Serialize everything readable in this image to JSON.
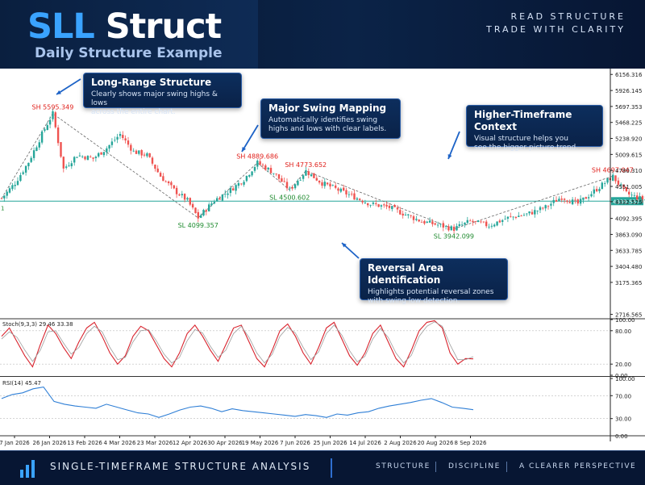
{
  "header": {
    "title_part1": "SLL",
    "title_part2": "Struct",
    "subtitle": "Daily Structure Example",
    "tagline_line1": "READ STRUCTURE",
    "tagline_line2": "TRADE WITH CLARITY"
  },
  "footer": {
    "left_text": "SINGLE-TIMEFRAME STRUCTURE ANALYSIS",
    "items": [
      "STRUCTURE",
      "DISCIPLINE",
      "A CLEARER PERSPECTIVE"
    ],
    "logo_icon": "bar-chart-icon"
  },
  "callouts": [
    {
      "title": "Long-Range Structure",
      "body": "Clearly shows major swing highs & lows\nacross the entire chart."
    },
    {
      "title": "Major Swing Mapping",
      "body": "Automatically identifies swing\nhighs and lows with clear labels."
    },
    {
      "title": "Higher-Timeframe Context",
      "body": "Visual structure helps you\nsee the bigger picture trend."
    },
    {
      "title": "Reversal Area Identification",
      "body": "Highlights potential reversal zones\nwith swing low detection."
    }
  ],
  "colors": {
    "up": "#26a69a",
    "down": "#ef5350",
    "swing_high": "#e0201b",
    "swing_low": "#1e8a2e",
    "current_price": "#26a69a",
    "stoch_k": "#d9232d",
    "stoch_d": "#9e9e9e",
    "rsi": "#2f7fd6",
    "callout_bg": "#0d2e5d"
  },
  "chart_data": [
    {
      "type": "candlestick",
      "x_tick_labels": [
        "7 Jan 2026",
        "26 Jan 2026",
        "13 Feb 2026",
        "4 Mar 2026",
        "23 Mar 2026",
        "12 Apr 2026",
        "30 Apr 2026",
        "19 May 2026",
        "7 Jun 2026",
        "25 Jun 2026",
        "14 Jul 2026",
        "2 Aug 2026",
        "20 Aug 2026",
        "8 Sep 2026"
      ],
      "y_tick_labels": [
        "6156.316",
        "5926.145",
        "5697.353",
        "5468.225",
        "5238.920",
        "5009.615",
        "4780.310",
        "4551.005",
        "4332.525",
        "4092.395",
        "3863.090",
        "3633.785",
        "3404.480",
        "3175.365",
        "2716.565"
      ],
      "ylim": [
        2700,
        6240
      ],
      "current_price": 4339.537,
      "current_price_label": "4339.537",
      "series": [
        {
          "x": "2026-01-07",
          "close": 4380
        },
        {
          "x": "2026-01-12",
          "close": 4600
        },
        {
          "x": "2026-01-17",
          "close": 4900
        },
        {
          "x": "2026-01-22",
          "close": 5300
        },
        {
          "x": "2026-01-26",
          "close": 5595.349
        },
        {
          "x": "2026-01-30",
          "close": 4800
        },
        {
          "x": "2026-02-04",
          "close": 5000
        },
        {
          "x": "2026-02-10",
          "close": 4950
        },
        {
          "x": "2026-02-15",
          "close": 5100
        },
        {
          "x": "2026-02-20",
          "close": 5300
        },
        {
          "x": "2026-02-25",
          "close": 5050
        },
        {
          "x": "2026-03-02",
          "close": 5000
        },
        {
          "x": "2026-03-07",
          "close": 4700
        },
        {
          "x": "2026-03-12",
          "close": 4500
        },
        {
          "x": "2026-03-17",
          "close": 4350
        },
        {
          "x": "2026-03-21",
          "close": 4099.357
        },
        {
          "x": "2026-03-27",
          "close": 4350
        },
        {
          "x": "2026-04-02",
          "close": 4500
        },
        {
          "x": "2026-04-07",
          "close": 4650
        },
        {
          "x": "2026-04-12",
          "close": 4889.686
        },
        {
          "x": "2026-04-18",
          "close": 4750
        },
        {
          "x": "2026-04-24",
          "close": 4500.602
        },
        {
          "x": "2026-04-30",
          "close": 4773.652
        },
        {
          "x": "2026-05-06",
          "close": 4600
        },
        {
          "x": "2026-05-12",
          "close": 4500
        },
        {
          "x": "2026-05-18",
          "close": 4400
        },
        {
          "x": "2026-05-24",
          "close": 4300
        },
        {
          "x": "2026-05-31",
          "close": 4250
        },
        {
          "x": "2026-06-06",
          "close": 4150
        },
        {
          "x": "2026-06-12",
          "close": 4050
        },
        {
          "x": "2026-06-18",
          "close": 4000
        },
        {
          "x": "2026-06-24",
          "close": 3942.099
        },
        {
          "x": "2026-06-30",
          "close": 4050
        },
        {
          "x": "2026-07-07",
          "close": 3990
        },
        {
          "x": "2026-07-14",
          "close": 4100
        },
        {
          "x": "2026-07-21",
          "close": 4150
        },
        {
          "x": "2026-07-28",
          "close": 4250
        },
        {
          "x": "2026-08-03",
          "close": 4400
        },
        {
          "x": "2026-08-09",
          "close": 4300
        },
        {
          "x": "2026-08-14",
          "close": 4450
        },
        {
          "x": "2026-08-19",
          "close": 4600
        },
        {
          "x": "2026-08-22",
          "close": 4697.047
        },
        {
          "x": "2026-08-27",
          "close": 4450
        },
        {
          "x": "2026-09-01",
          "close": 4380
        },
        {
          "x": "2026-09-06",
          "close": 4339.537
        }
      ],
      "swing_labels": [
        {
          "text": "SH 5595.349",
          "kind": "high",
          "x": "2026-01-26",
          "y": 5595.349
        },
        {
          "text": "SL 4099.357",
          "kind": "low",
          "x": "2026-03-21",
          "y": 4099.357
        },
        {
          "text": "SH 4889.686",
          "kind": "high",
          "x": "2026-04-12",
          "y": 4889.686
        },
        {
          "text": "SL 4500.602",
          "kind": "low",
          "x": "2026-04-24",
          "y": 4500.602
        },
        {
          "text": "SH 4773.652",
          "kind": "high",
          "x": "2026-04-30",
          "y": 4773.652
        },
        {
          "text": "SL 3942.099",
          "kind": "low",
          "x": "2026-06-24",
          "y": 3942.099
        },
        {
          "text": "SH 4697.047",
          "kind": "high",
          "x": "2026-08-22",
          "y": 4697.047
        }
      ]
    },
    {
      "type": "line",
      "indicator_label": "Stoch(9,3,3) 29.46 33.38",
      "ylim": [
        0,
        100
      ],
      "y_tick_labels": [
        "100.00",
        "80.00",
        "20.00",
        "0.00"
      ],
      "levels": [
        80,
        20
      ],
      "series": [
        {
          "values": [
            70,
            85,
            60,
            35,
            15,
            55,
            90,
            75,
            50,
            30,
            60,
            85,
            95,
            70,
            40,
            20,
            35,
            70,
            88,
            80,
            55,
            30,
            15,
            40,
            75,
            90,
            70,
            45,
            25,
            55,
            85,
            90,
            60,
            30,
            15,
            45,
            80,
            92,
            70,
            40,
            20,
            50,
            85,
            95,
            65,
            35,
            18,
            40,
            75,
            90,
            60,
            30,
            15,
            45,
            80,
            95,
            98,
            85,
            40,
            20,
            30,
            29.46
          ]
        },
        {
          "values": [
            65,
            78,
            68,
            45,
            25,
            45,
            78,
            80,
            58,
            38,
            50,
            75,
            88,
            78,
            50,
            28,
            32,
            60,
            80,
            82,
            62,
            38,
            22,
            32,
            62,
            82,
            76,
            52,
            32,
            45,
            75,
            88,
            68,
            40,
            22,
            38,
            70,
            86,
            76,
            50,
            28,
            42,
            75,
            90,
            72,
            44,
            24,
            34,
            65,
            84,
            68,
            40,
            22,
            36,
            70,
            88,
            96,
            88,
            55,
            28,
            28,
            33.38
          ]
        }
      ]
    },
    {
      "type": "line",
      "indicator_label": "RSI(14) 45.47",
      "ylim": [
        0,
        100
      ],
      "y_tick_labels": [
        "100.00",
        "70.00",
        "30.00",
        "0.00"
      ],
      "levels": [
        70,
        30
      ],
      "series": [
        {
          "values": [
            65,
            72,
            75,
            82,
            85,
            60,
            55,
            52,
            50,
            48,
            55,
            50,
            45,
            40,
            38,
            32,
            38,
            45,
            50,
            52,
            48,
            42,
            47,
            44,
            42,
            40,
            38,
            36,
            34,
            37,
            35,
            32,
            38,
            36,
            40,
            42,
            48,
            52,
            55,
            58,
            62,
            65,
            58,
            50,
            48,
            45.47
          ]
        }
      ]
    }
  ]
}
